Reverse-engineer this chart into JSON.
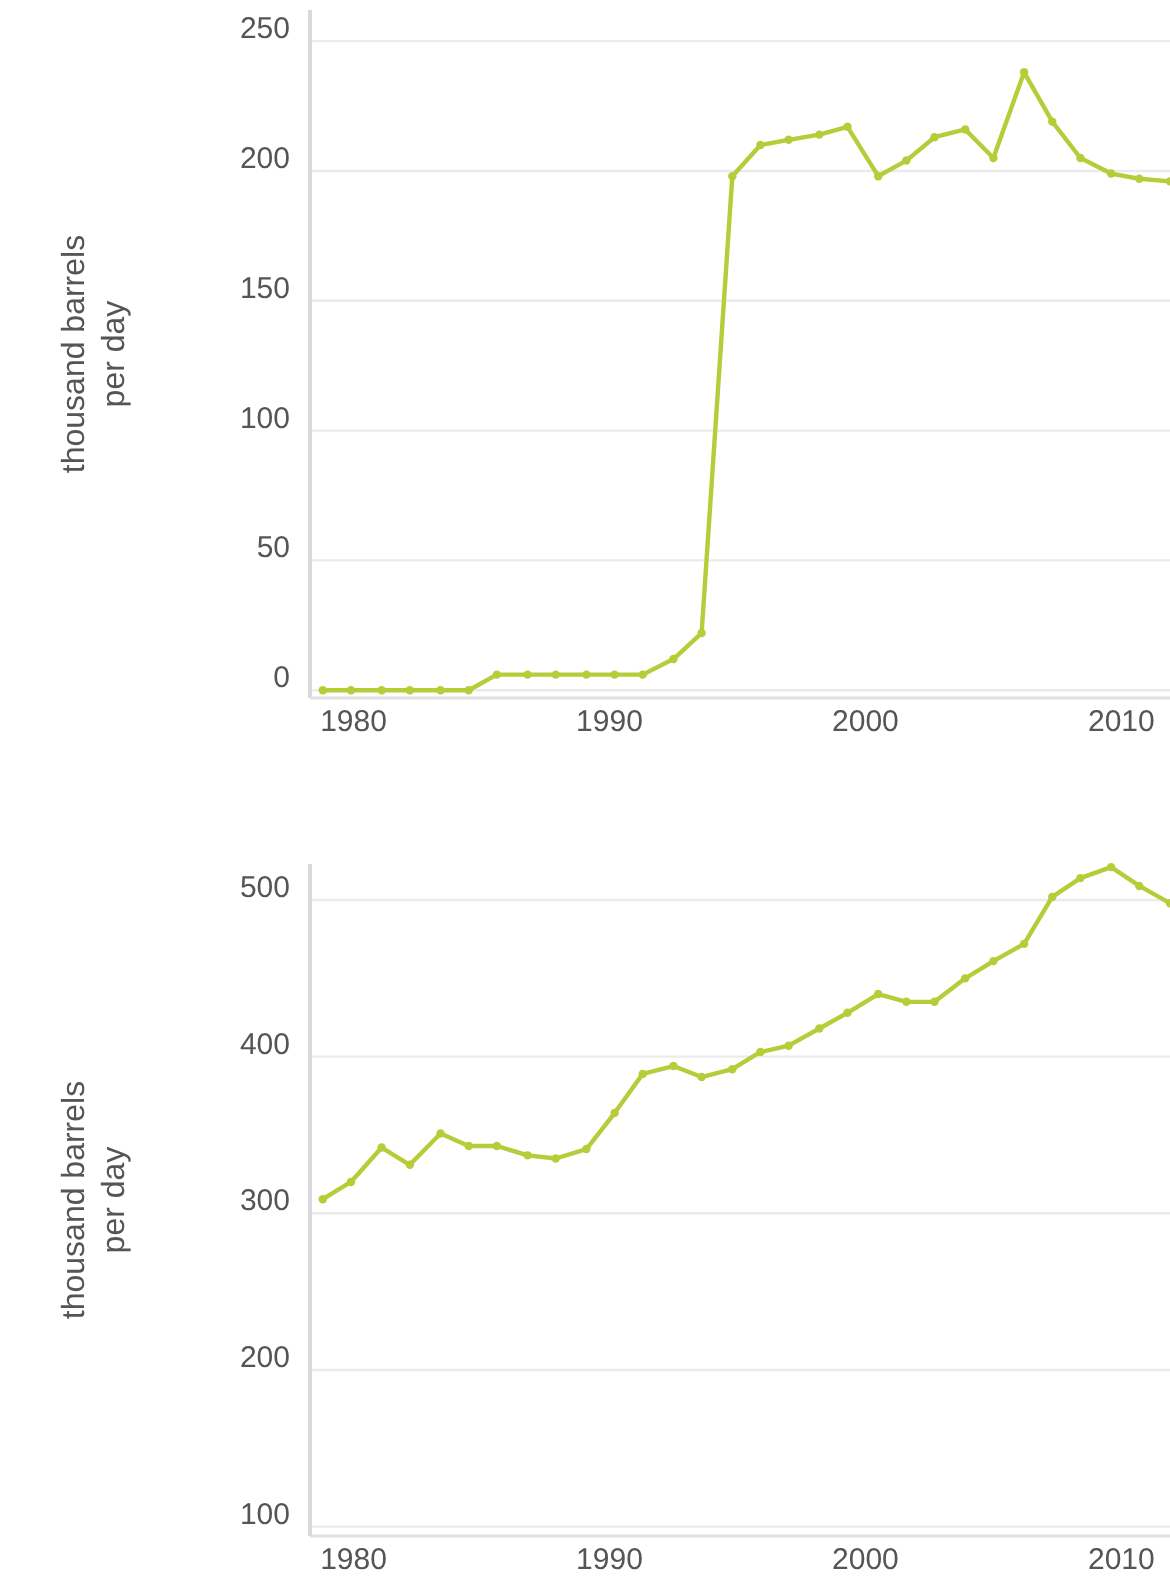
{
  "chart_data": [
    {
      "type": "line",
      "ylabel": "thousand barrels per day",
      "x": [
        1978.8,
        1979.9,
        1981.1,
        1982.2,
        1983.4,
        1984.5,
        1985.6,
        1986.8,
        1987.9,
        1989.1,
        1990.2,
        1991.3,
        1992.5,
        1993.6,
        1994.8,
        1995.9,
        1997.0,
        1998.2,
        1999.3,
        2000.5,
        2001.6,
        2002.7,
        2003.9,
        2005.0,
        2006.2,
        2007.3,
        2008.4,
        2009.6,
        2010.7,
        2011.9
      ],
      "series": [
        {
          "color": "#b8cc3a",
          "values": [
            0,
            0,
            0,
            0,
            0,
            0,
            6,
            6,
            6,
            6,
            6,
            6,
            12,
            22,
            198,
            210,
            212,
            214,
            217,
            198,
            204,
            213,
            216,
            205,
            238,
            219,
            205,
            199,
            197,
            196
          ]
        }
      ],
      "xlim": [
        1978.3,
        2011.9
      ],
      "xticks": [
        1980,
        1990,
        2000,
        2010
      ],
      "ylim": [
        -3,
        262
      ],
      "yticks": [
        0,
        50,
        100,
        150,
        200,
        250
      ],
      "grid": "y",
      "marker": "circle",
      "line_style": "solid"
    },
    {
      "type": "line",
      "ylabel": "thousand barrels per day",
      "x": [
        1978.8,
        1979.9,
        1981.1,
        1982.2,
        1983.4,
        1984.5,
        1985.6,
        1986.8,
        1987.9,
        1989.1,
        1990.2,
        1991.3,
        1992.5,
        1993.6,
        1994.8,
        1995.9,
        1997.0,
        1998.2,
        1999.3,
        2000.5,
        2001.6,
        2002.7,
        2003.9,
        2005.0,
        2006.2,
        2007.3,
        2008.4,
        2009.6,
        2010.7,
        2011.9
      ],
      "series": [
        {
          "color": "#b8cc3a",
          "values": [
            309,
            320,
            342,
            331,
            351,
            343,
            343,
            337,
            335,
            341,
            364,
            389,
            394,
            387,
            392,
            403,
            407,
            418,
            428,
            440,
            435,
            435,
            450,
            461,
            472,
            502,
            514,
            521,
            509,
            498
          ]
        }
      ],
      "xlim": [
        1978.3,
        2011.9
      ],
      "xticks": [
        1980,
        1990,
        2000,
        2010
      ],
      "ylim": [
        94,
        523
      ],
      "yticks": [
        100,
        200,
        300,
        400,
        500
      ],
      "grid": "y",
      "marker": "circle",
      "line_style": "solid"
    }
  ]
}
